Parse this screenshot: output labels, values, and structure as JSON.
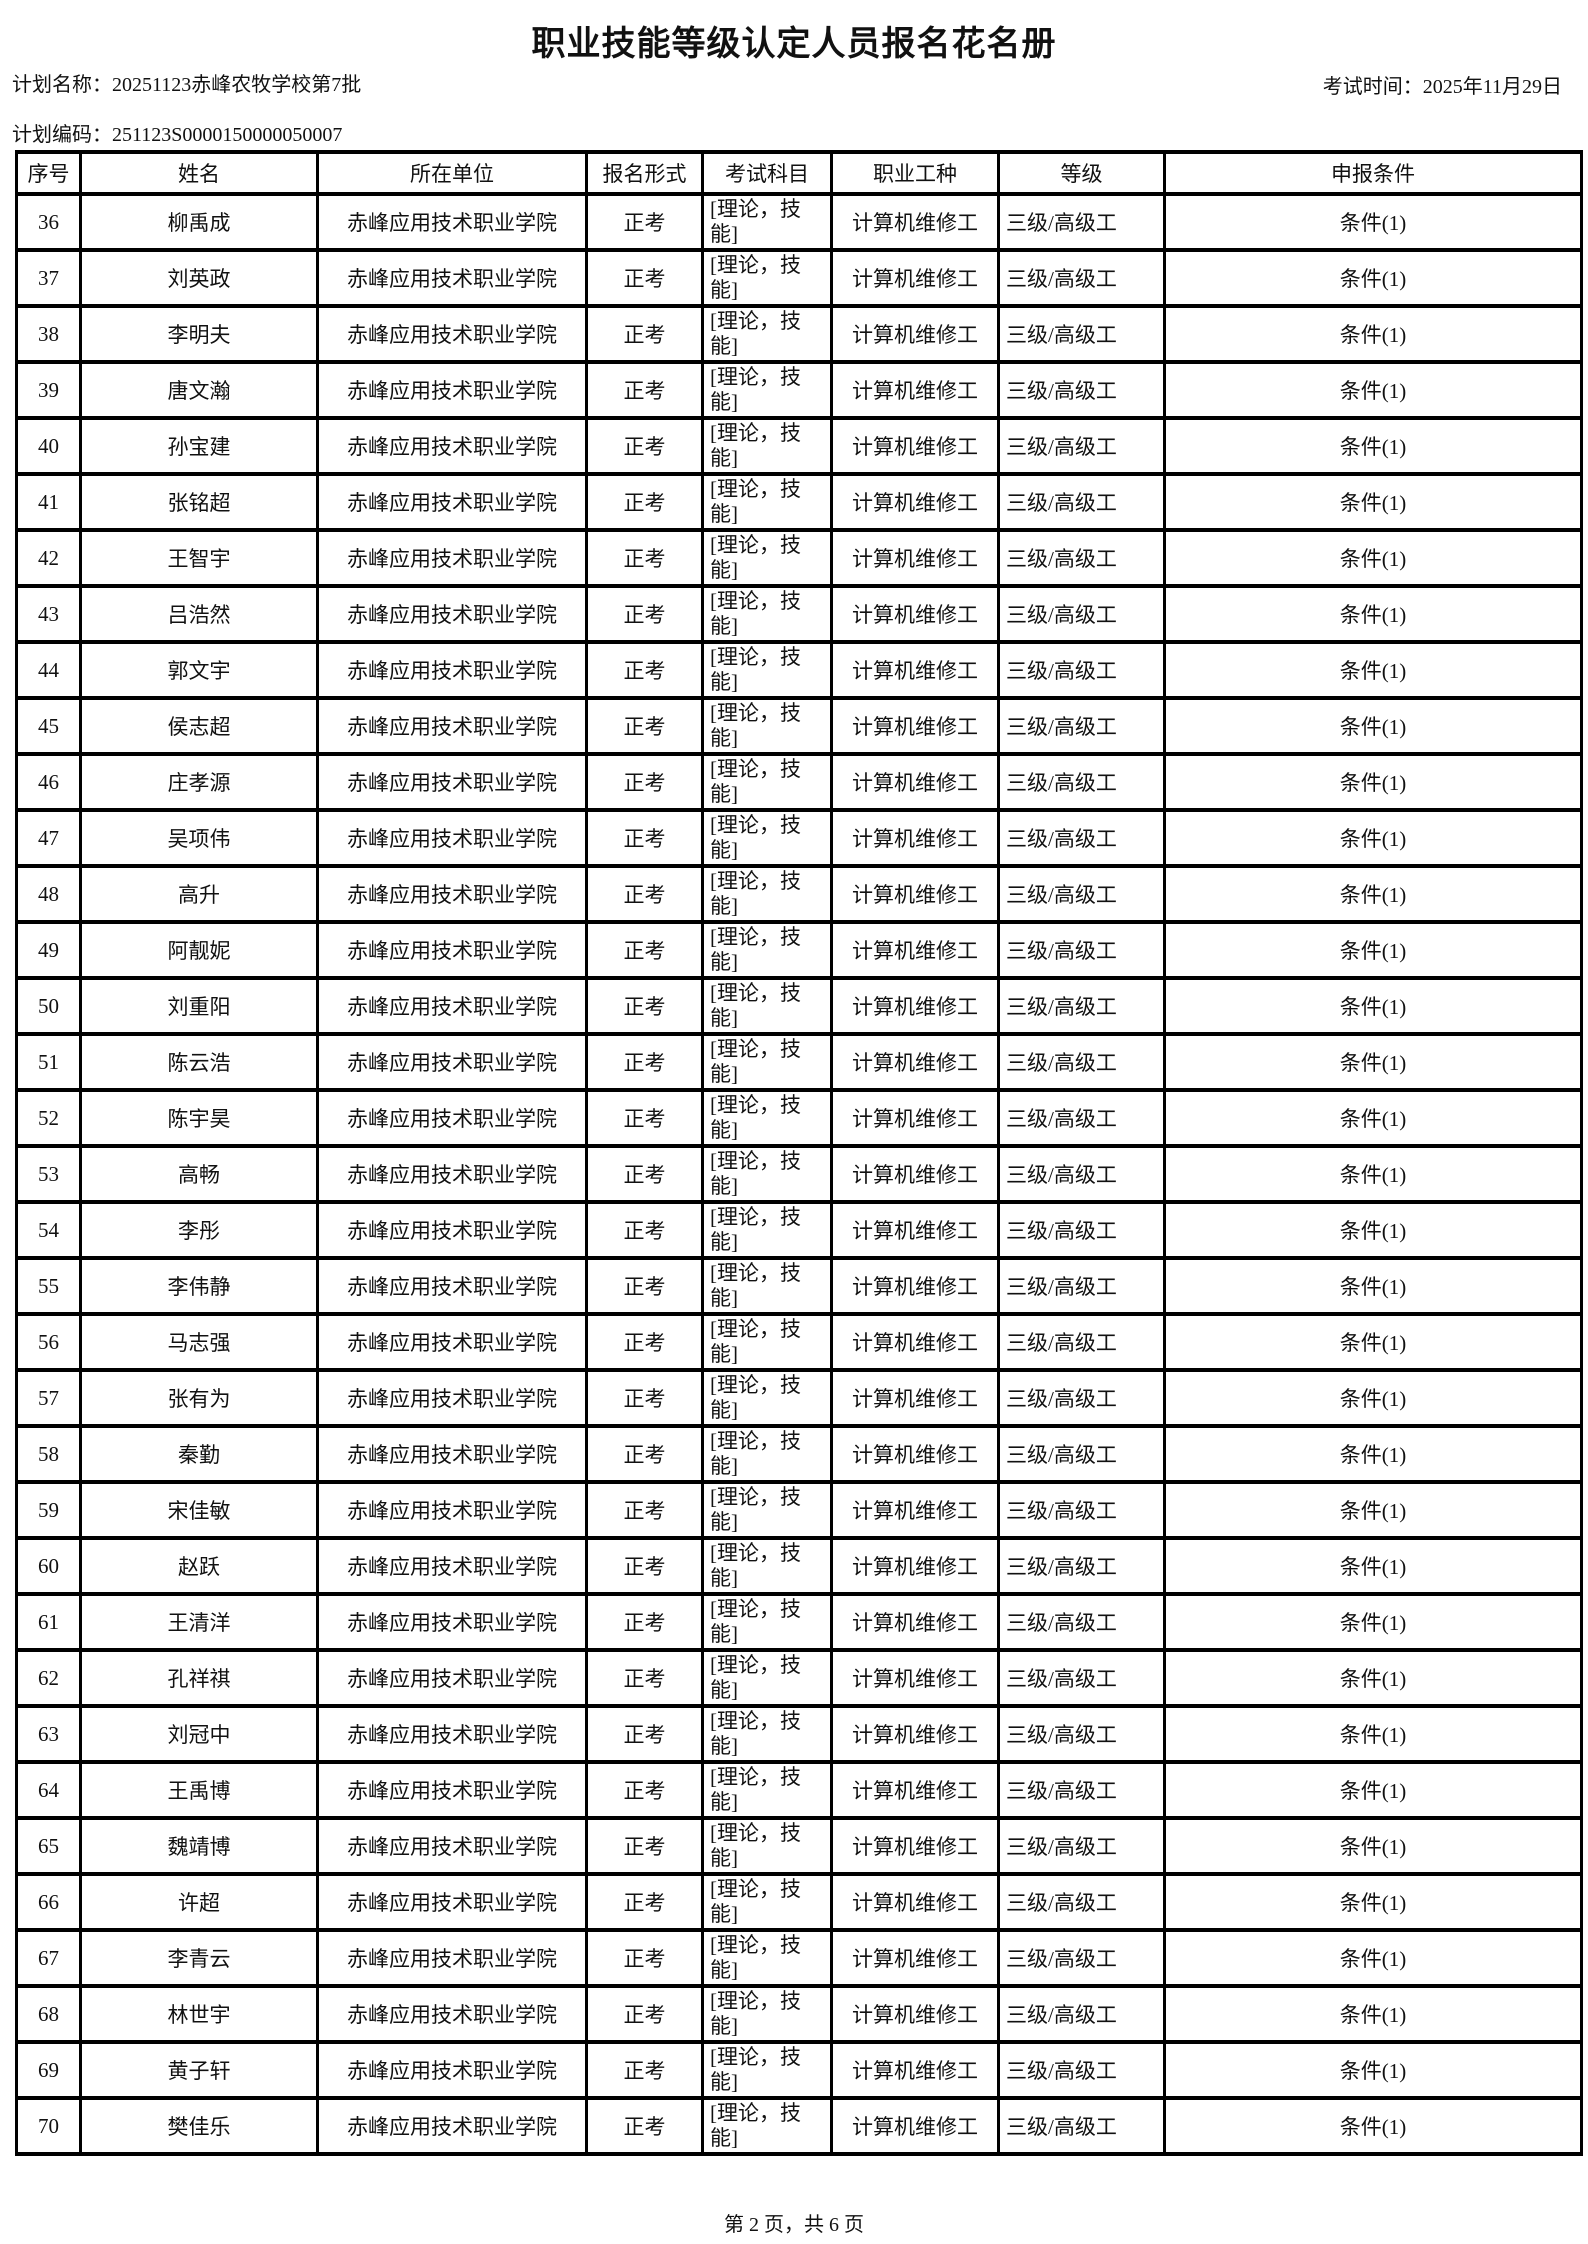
{
  "page": {
    "title": "职业技能等级认定人员报名花名册",
    "plan_name_label": "计划名称：",
    "plan_name": "20251123赤峰农牧学校第7批",
    "exam_time_label": "考试时间：",
    "exam_time": "2025年11月29日",
    "plan_code_label": "计划编码：",
    "plan_code": "251123S0000150000050007",
    "footer": "第 2 页，共 6 页"
  },
  "table": {
    "columns": [
      "序号",
      "姓名",
      "所在单位",
      "报名形式",
      "考试科目",
      "职业工种",
      "等级",
      "申报条件"
    ],
    "column_keys": [
      "no",
      "name",
      "unit",
      "form",
      "subject",
      "occupation",
      "level",
      "condition"
    ],
    "rows": [
      {
        "no": "36",
        "name": "柳禹成",
        "unit": "赤峰应用技术职业学院",
        "form": "正考",
        "subject": "[理论，技能]",
        "occupation": "计算机维修工",
        "level": "三级/高级工",
        "condition": "条件(1)"
      },
      {
        "no": "37",
        "name": "刘英政",
        "unit": "赤峰应用技术职业学院",
        "form": "正考",
        "subject": "[理论，技能]",
        "occupation": "计算机维修工",
        "level": "三级/高级工",
        "condition": "条件(1)"
      },
      {
        "no": "38",
        "name": "李明夫",
        "unit": "赤峰应用技术职业学院",
        "form": "正考",
        "subject": "[理论，技能]",
        "occupation": "计算机维修工",
        "level": "三级/高级工",
        "condition": "条件(1)"
      },
      {
        "no": "39",
        "name": "唐文瀚",
        "unit": "赤峰应用技术职业学院",
        "form": "正考",
        "subject": "[理论，技能]",
        "occupation": "计算机维修工",
        "level": "三级/高级工",
        "condition": "条件(1)"
      },
      {
        "no": "40",
        "name": "孙宝建",
        "unit": "赤峰应用技术职业学院",
        "form": "正考",
        "subject": "[理论，技能]",
        "occupation": "计算机维修工",
        "level": "三级/高级工",
        "condition": "条件(1)"
      },
      {
        "no": "41",
        "name": "张铭超",
        "unit": "赤峰应用技术职业学院",
        "form": "正考",
        "subject": "[理论，技能]",
        "occupation": "计算机维修工",
        "level": "三级/高级工",
        "condition": "条件(1)"
      },
      {
        "no": "42",
        "name": "王智宇",
        "unit": "赤峰应用技术职业学院",
        "form": "正考",
        "subject": "[理论，技能]",
        "occupation": "计算机维修工",
        "level": "三级/高级工",
        "condition": "条件(1)"
      },
      {
        "no": "43",
        "name": "吕浩然",
        "unit": "赤峰应用技术职业学院",
        "form": "正考",
        "subject": "[理论，技能]",
        "occupation": "计算机维修工",
        "level": "三级/高级工",
        "condition": "条件(1)"
      },
      {
        "no": "44",
        "name": "郭文宇",
        "unit": "赤峰应用技术职业学院",
        "form": "正考",
        "subject": "[理论，技能]",
        "occupation": "计算机维修工",
        "level": "三级/高级工",
        "condition": "条件(1)"
      },
      {
        "no": "45",
        "name": "侯志超",
        "unit": "赤峰应用技术职业学院",
        "form": "正考",
        "subject": "[理论，技能]",
        "occupation": "计算机维修工",
        "level": "三级/高级工",
        "condition": "条件(1)"
      },
      {
        "no": "46",
        "name": "庄孝源",
        "unit": "赤峰应用技术职业学院",
        "form": "正考",
        "subject": "[理论，技能]",
        "occupation": "计算机维修工",
        "level": "三级/高级工",
        "condition": "条件(1)"
      },
      {
        "no": "47",
        "name": "吴项伟",
        "unit": "赤峰应用技术职业学院",
        "form": "正考",
        "subject": "[理论，技能]",
        "occupation": "计算机维修工",
        "level": "三级/高级工",
        "condition": "条件(1)"
      },
      {
        "no": "48",
        "name": "高升",
        "unit": "赤峰应用技术职业学院",
        "form": "正考",
        "subject": "[理论，技能]",
        "occupation": "计算机维修工",
        "level": "三级/高级工",
        "condition": "条件(1)"
      },
      {
        "no": "49",
        "name": "阿靓妮",
        "unit": "赤峰应用技术职业学院",
        "form": "正考",
        "subject": "[理论，技能]",
        "occupation": "计算机维修工",
        "level": "三级/高级工",
        "condition": "条件(1)"
      },
      {
        "no": "50",
        "name": "刘重阳",
        "unit": "赤峰应用技术职业学院",
        "form": "正考",
        "subject": "[理论，技能]",
        "occupation": "计算机维修工",
        "level": "三级/高级工",
        "condition": "条件(1)"
      },
      {
        "no": "51",
        "name": "陈云浩",
        "unit": "赤峰应用技术职业学院",
        "form": "正考",
        "subject": "[理论，技能]",
        "occupation": "计算机维修工",
        "level": "三级/高级工",
        "condition": "条件(1)"
      },
      {
        "no": "52",
        "name": "陈宇昊",
        "unit": "赤峰应用技术职业学院",
        "form": "正考",
        "subject": "[理论，技能]",
        "occupation": "计算机维修工",
        "level": "三级/高级工",
        "condition": "条件(1)"
      },
      {
        "no": "53",
        "name": "高畅",
        "unit": "赤峰应用技术职业学院",
        "form": "正考",
        "subject": "[理论，技能]",
        "occupation": "计算机维修工",
        "level": "三级/高级工",
        "condition": "条件(1)"
      },
      {
        "no": "54",
        "name": "李彤",
        "unit": "赤峰应用技术职业学院",
        "form": "正考",
        "subject": "[理论，技能]",
        "occupation": "计算机维修工",
        "level": "三级/高级工",
        "condition": "条件(1)"
      },
      {
        "no": "55",
        "name": "李伟静",
        "unit": "赤峰应用技术职业学院",
        "form": "正考",
        "subject": "[理论，技能]",
        "occupation": "计算机维修工",
        "level": "三级/高级工",
        "condition": "条件(1)"
      },
      {
        "no": "56",
        "name": "马志强",
        "unit": "赤峰应用技术职业学院",
        "form": "正考",
        "subject": "[理论，技能]",
        "occupation": "计算机维修工",
        "level": "三级/高级工",
        "condition": "条件(1)"
      },
      {
        "no": "57",
        "name": "张有为",
        "unit": "赤峰应用技术职业学院",
        "form": "正考",
        "subject": "[理论，技能]",
        "occupation": "计算机维修工",
        "level": "三级/高级工",
        "condition": "条件(1)"
      },
      {
        "no": "58",
        "name": "秦勤",
        "unit": "赤峰应用技术职业学院",
        "form": "正考",
        "subject": "[理论，技能]",
        "occupation": "计算机维修工",
        "level": "三级/高级工",
        "condition": "条件(1)"
      },
      {
        "no": "59",
        "name": "宋佳敏",
        "unit": "赤峰应用技术职业学院",
        "form": "正考",
        "subject": "[理论，技能]",
        "occupation": "计算机维修工",
        "level": "三级/高级工",
        "condition": "条件(1)"
      },
      {
        "no": "60",
        "name": "赵跃",
        "unit": "赤峰应用技术职业学院",
        "form": "正考",
        "subject": "[理论，技能]",
        "occupation": "计算机维修工",
        "level": "三级/高级工",
        "condition": "条件(1)"
      },
      {
        "no": "61",
        "name": "王清洋",
        "unit": "赤峰应用技术职业学院",
        "form": "正考",
        "subject": "[理论，技能]",
        "occupation": "计算机维修工",
        "level": "三级/高级工",
        "condition": "条件(1)"
      },
      {
        "no": "62",
        "name": "孔祥祺",
        "unit": "赤峰应用技术职业学院",
        "form": "正考",
        "subject": "[理论，技能]",
        "occupation": "计算机维修工",
        "level": "三级/高级工",
        "condition": "条件(1)"
      },
      {
        "no": "63",
        "name": "刘冠中",
        "unit": "赤峰应用技术职业学院",
        "form": "正考",
        "subject": "[理论，技能]",
        "occupation": "计算机维修工",
        "level": "三级/高级工",
        "condition": "条件(1)"
      },
      {
        "no": "64",
        "name": "王禹博",
        "unit": "赤峰应用技术职业学院",
        "form": "正考",
        "subject": "[理论，技能]",
        "occupation": "计算机维修工",
        "level": "三级/高级工",
        "condition": "条件(1)"
      },
      {
        "no": "65",
        "name": "魏靖博",
        "unit": "赤峰应用技术职业学院",
        "form": "正考",
        "subject": "[理论，技能]",
        "occupation": "计算机维修工",
        "level": "三级/高级工",
        "condition": "条件(1)"
      },
      {
        "no": "66",
        "name": "许超",
        "unit": "赤峰应用技术职业学院",
        "form": "正考",
        "subject": "[理论，技能]",
        "occupation": "计算机维修工",
        "level": "三级/高级工",
        "condition": "条件(1)"
      },
      {
        "no": "67",
        "name": "李青云",
        "unit": "赤峰应用技术职业学院",
        "form": "正考",
        "subject": "[理论，技能]",
        "occupation": "计算机维修工",
        "level": "三级/高级工",
        "condition": "条件(1)"
      },
      {
        "no": "68",
        "name": "林世宇",
        "unit": "赤峰应用技术职业学院",
        "form": "正考",
        "subject": "[理论，技能]",
        "occupation": "计算机维修工",
        "level": "三级/高级工",
        "condition": "条件(1)"
      },
      {
        "no": "69",
        "name": "黄子轩",
        "unit": "赤峰应用技术职业学院",
        "form": "正考",
        "subject": "[理论，技能]",
        "occupation": "计算机维修工",
        "level": "三级/高级工",
        "condition": "条件(1)"
      },
      {
        "no": "70",
        "name": "樊佳乐",
        "unit": "赤峰应用技术职业学院",
        "form": "正考",
        "subject": "[理论，技能]",
        "occupation": "计算机维修工",
        "level": "三级/高级工",
        "condition": "条件(1)"
      }
    ]
  }
}
